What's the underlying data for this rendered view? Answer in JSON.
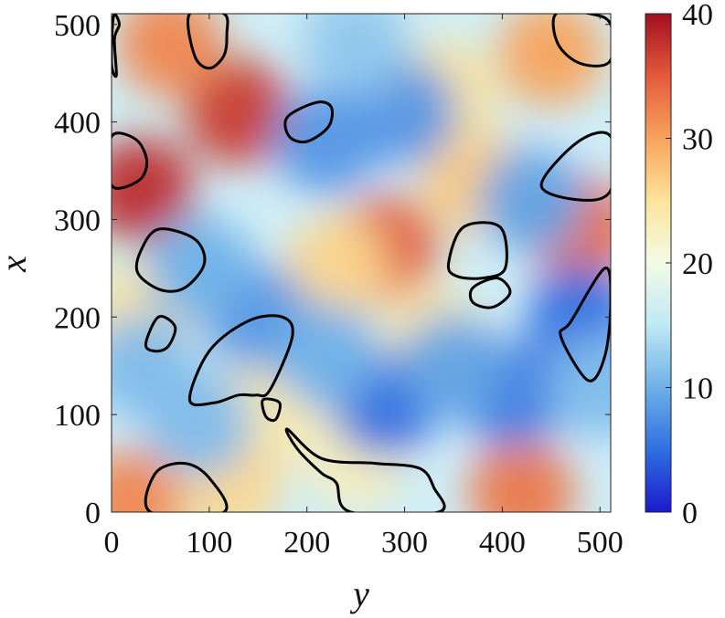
{
  "chart_data": {
    "type": "heatmap",
    "title": "",
    "xlabel": "y",
    "ylabel": "x",
    "xlim": [
      0,
      511
    ],
    "ylim": [
      0,
      511
    ],
    "x_ticks": [
      0,
      100,
      200,
      300,
      400,
      500
    ],
    "x_tick_labels": [
      "0",
      "100",
      "200",
      "300",
      "400",
      "500"
    ],
    "y_ticks": [
      0,
      100,
      200,
      300,
      400,
      500
    ],
    "y_tick_labels": [
      "0",
      "100",
      "200",
      "300",
      "400",
      "500"
    ],
    "colorbar": {
      "range": [
        0,
        40
      ],
      "ticks": [
        0,
        10,
        20,
        30,
        40
      ],
      "tick_labels": [
        "0",
        "10",
        "20",
        "30",
        "40"
      ],
      "colormap": [
        "#1a1acc",
        "#2e6fe0",
        "#6fb0e8",
        "#bfe8f5",
        "#f2fbe6",
        "#fde49a",
        "#f8a35c",
        "#e35a3c",
        "#a30f1f"
      ]
    },
    "field_peaks": [
      {
        "y": 30,
        "x": 330,
        "value": 38
      },
      {
        "y": 130,
        "x": 410,
        "value": 37
      },
      {
        "y": 280,
        "x": 270,
        "value": 35
      },
      {
        "y": 480,
        "x": 290,
        "value": 34
      },
      {
        "y": 420,
        "x": 20,
        "value": 33
      },
      {
        "y": 60,
        "x": 480,
        "value": 32
      },
      {
        "y": 450,
        "x": 470,
        "value": 30
      },
      {
        "y": 20,
        "x": 10,
        "value": 32
      },
      {
        "y": 230,
        "x": 250,
        "value": 26
      },
      {
        "y": 370,
        "x": 340,
        "value": 27
      },
      {
        "y": 340,
        "x": 430,
        "value": 25
      },
      {
        "y": 30,
        "x": 200,
        "value": 25
      },
      {
        "y": 330,
        "x": 180,
        "value": 24
      },
      {
        "y": 150,
        "x": 100,
        "value": 24
      },
      {
        "y": 120,
        "x": 30,
        "value": 26
      },
      {
        "y": 250,
        "x": 60,
        "value": 23
      },
      {
        "y": 280,
        "x": 110,
        "value": 5
      },
      {
        "y": 410,
        "x": 120,
        "value": 6
      },
      {
        "y": 480,
        "x": 200,
        "value": 5
      },
      {
        "y": 300,
        "x": 410,
        "value": 8
      },
      {
        "y": 430,
        "x": 320,
        "value": 9
      },
      {
        "y": 150,
        "x": 200,
        "value": 8
      },
      {
        "y": 220,
        "x": 380,
        "value": 8
      },
      {
        "y": 30,
        "x": 150,
        "value": 11
      },
      {
        "y": 220,
        "x": 160,
        "value": 10
      },
      {
        "y": 90,
        "x": 90,
        "value": 11
      },
      {
        "y": 350,
        "x": 150,
        "value": 9
      },
      {
        "y": 90,
        "x": 250,
        "value": 10
      },
      {
        "y": 250,
        "x": 480,
        "value": 12
      },
      {
        "y": 500,
        "x": 130,
        "value": 11
      }
    ],
    "contours": [
      [
        [
          0,
          460
        ],
        [
          5,
          448
        ],
        [
          3,
          485
        ],
        [
          8,
          500
        ],
        [
          2,
          508
        ]
      ],
      [
        [
          80,
          511
        ],
        [
          85,
          468
        ],
        [
          100,
          455
        ],
        [
          115,
          468
        ],
        [
          118,
          490
        ],
        [
          115,
          511
        ]
      ],
      [
        [
          455,
          511
        ],
        [
          457,
          480
        ],
        [
          480,
          460
        ],
        [
          510,
          462
        ],
        [
          511,
          500
        ],
        [
          490,
          511
        ]
      ],
      [
        [
          0,
          385
        ],
        [
          25,
          382
        ],
        [
          36,
          360
        ],
        [
          28,
          340
        ],
        [
          0,
          335
        ]
      ],
      [
        [
          225,
          415
        ],
        [
          210,
          420
        ],
        [
          180,
          405
        ],
        [
          182,
          385
        ],
        [
          200,
          380
        ],
        [
          222,
          395
        ]
      ],
      [
        [
          480,
          320
        ],
        [
          440,
          335
        ],
        [
          478,
          380
        ],
        [
          511,
          385
        ],
        [
          511,
          330
        ]
      ],
      [
        [
          30,
          268
        ],
        [
          48,
          290
        ],
        [
          85,
          280
        ],
        [
          95,
          255
        ],
        [
          75,
          230
        ],
        [
          50,
          228
        ],
        [
          27,
          245
        ]
      ],
      [
        [
          345,
          255
        ],
        [
          360,
          292
        ],
        [
          398,
          292
        ],
        [
          403,
          250
        ],
        [
          380,
          240
        ],
        [
          353,
          242
        ]
      ],
      [
        [
          370,
          230
        ],
        [
          395,
          240
        ],
        [
          408,
          225
        ],
        [
          390,
          210
        ],
        [
          370,
          215
        ]
      ],
      [
        [
          470,
          195
        ],
        [
          505,
          250
        ],
        [
          511,
          215
        ],
        [
          505,
          160
        ],
        [
          488,
          135
        ],
        [
          460,
          180
        ]
      ],
      [
        [
          35,
          172
        ],
        [
          48,
          200
        ],
        [
          65,
          190
        ],
        [
          58,
          170
        ],
        [
          45,
          165
        ]
      ],
      [
        [
          80,
          115
        ],
        [
          100,
          165
        ],
        [
          140,
          196
        ],
        [
          175,
          200
        ],
        [
          185,
          180
        ],
        [
          162,
          125
        ],
        [
          148,
          120
        ],
        [
          130,
          120
        ],
        [
          105,
          112
        ]
      ],
      [
        [
          155,
          115
        ],
        [
          172,
          112
        ],
        [
          168,
          95
        ],
        [
          158,
          98
        ]
      ],
      [
        [
          180,
          85
        ],
        [
          215,
          55
        ],
        [
          270,
          50
        ],
        [
          315,
          45
        ],
        [
          330,
          25
        ],
        [
          335,
          0
        ],
        [
          245,
          0
        ],
        [
          230,
          30
        ],
        [
          215,
          40
        ],
        [
          190,
          65
        ]
      ],
      [
        [
          40,
          0
        ],
        [
          45,
          40
        ],
        [
          75,
          50
        ],
        [
          100,
          35
        ],
        [
          115,
          0
        ]
      ]
    ]
  }
}
